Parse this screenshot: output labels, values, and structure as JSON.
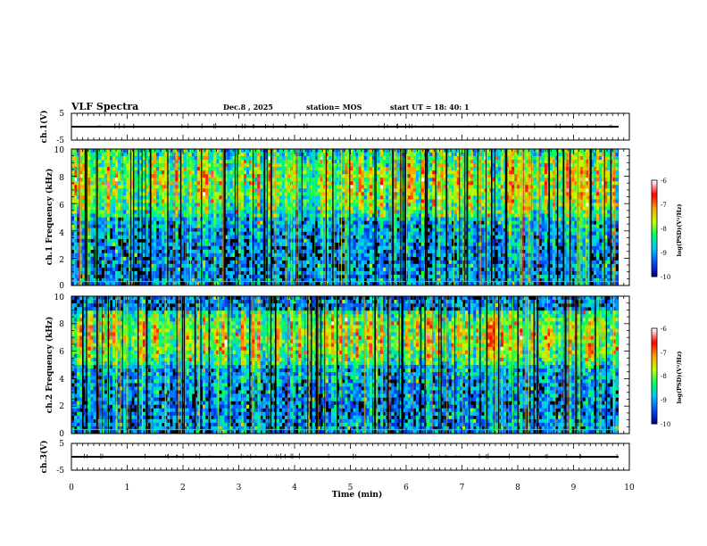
{
  "header": {
    "title": "VLF Spectra",
    "date": "Dec.8  , 2025",
    "station": "station= MOS",
    "start_ut": "start  UT  =   18: 40: 1"
  },
  "colors": {
    "background": "#000000",
    "axis": "#000000",
    "trace": "#000000"
  },
  "chart_data": [
    {
      "type": "line",
      "name": "ch1-waveform",
      "ylabel": "ch.1(V)",
      "xlim": [
        0,
        10
      ],
      "ylim": [
        -5,
        5
      ],
      "yticks": [
        "5",
        "-5"
      ],
      "values_baseline": -1
    },
    {
      "type": "heatmap",
      "name": "ch1-spectrogram",
      "ylabel": "ch.1 Frequency (kHz)",
      "xlim": [
        0,
        10
      ],
      "ylim": [
        0,
        10
      ],
      "yticks": [
        "0",
        "2",
        "4",
        "6",
        "8",
        "10"
      ],
      "data_end_min": 9.8,
      "dominant_band_khz": [
        5,
        10
      ]
    },
    {
      "type": "heatmap",
      "name": "ch2-spectrogram",
      "ylabel": "ch.2 Frequency (kHz)",
      "xlim": [
        0,
        10
      ],
      "ylim": [
        0,
        10
      ],
      "yticks": [
        "0",
        "2",
        "4",
        "6",
        "8",
        "10"
      ],
      "data_end_min": 9.8,
      "dominant_band_khz": [
        5,
        9
      ]
    },
    {
      "type": "line",
      "name": "ch3-waveform",
      "ylabel": "ch.3(V)",
      "xlim": [
        0,
        10
      ],
      "ylim": [
        -5,
        5
      ],
      "yticks": [
        "5",
        "-5"
      ],
      "values_baseline": -1
    }
  ],
  "xaxis": {
    "label": "Time (min)",
    "ticks": [
      "0",
      "1",
      "2",
      "3",
      "4",
      "5",
      "6",
      "7",
      "8",
      "9",
      "10"
    ]
  },
  "colorbars": [
    {
      "label": "log(PSD)(V²/Hz)",
      "ticks": [
        "-6",
        "-7",
        "-8",
        "-9",
        "-10"
      ],
      "range": [
        -10,
        -6
      ],
      "stops": [
        "#000090",
        "#0050ff",
        "#00c8ff",
        "#00ff60",
        "#c8ff00",
        "#ffa000",
        "#ff0000",
        "#ffffff"
      ]
    },
    {
      "label": "log(PSD)(V²/Hz)",
      "ticks": [
        "-6",
        "-7",
        "-8",
        "-9",
        "-10"
      ],
      "range": [
        -10,
        -6
      ],
      "stops": [
        "#000090",
        "#0050ff",
        "#00c8ff",
        "#00ff60",
        "#c8ff00",
        "#ffa000",
        "#ff0000",
        "#ffffff"
      ]
    }
  ]
}
